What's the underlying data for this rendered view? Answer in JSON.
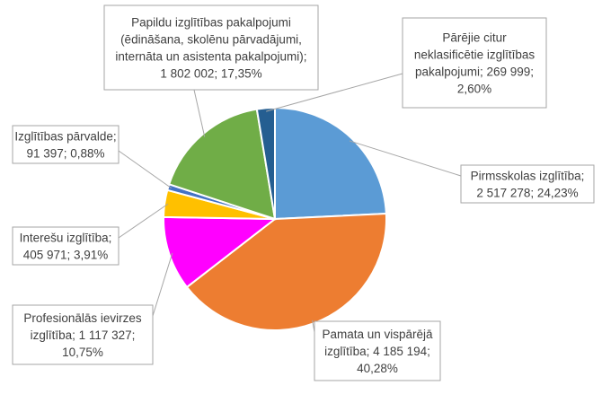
{
  "chart_data": {
    "type": "pie",
    "start_angle_deg": 0,
    "direction": "clockwise",
    "slices": [
      {
        "lines": [
          "Pirmsskolas izglītība;",
          "2 517 278; 24,23%"
        ],
        "value": 2517278,
        "percent": 24.23,
        "color": "#5b9bd5"
      },
      {
        "lines": [
          "Pamata un vispārējā",
          "izglītība; 4 185 194;",
          "40,28%"
        ],
        "value": 4185194,
        "percent": 40.28,
        "color": "#ed7d31"
      },
      {
        "lines": [
          "Profesionālās ievirzes",
          "izglītība; 1 117 327;",
          "10,75%"
        ],
        "value": 1117327,
        "percent": 10.75,
        "color": "#ff00ff"
      },
      {
        "lines": [
          "Interešu izglītība;",
          "405 971; 3,91%"
        ],
        "value": 405971,
        "percent": 3.91,
        "color": "#ffc000"
      },
      {
        "lines": [
          "Izglītības pārvalde;",
          "91 397; 0,88%"
        ],
        "value": 91397,
        "percent": 0.88,
        "color": "#4472c4"
      },
      {
        "lines": [
          "Papildu izglītības pakalpojumi",
          "(ēdināšana, skolēnu pārvadājumi,",
          "internāta un asistenta pakalpojumi);",
          "1 802 002; 17,35%"
        ],
        "value": 1802002,
        "percent": 17.35,
        "color": "#70ad47"
      },
      {
        "lines": [
          "Pārējie citur",
          "neklasificētie izglītības",
          "pakalpojumi; 269 999;",
          "2,60%"
        ],
        "value": 269999,
        "percent": 2.6,
        "color": "#255e91"
      }
    ]
  }
}
